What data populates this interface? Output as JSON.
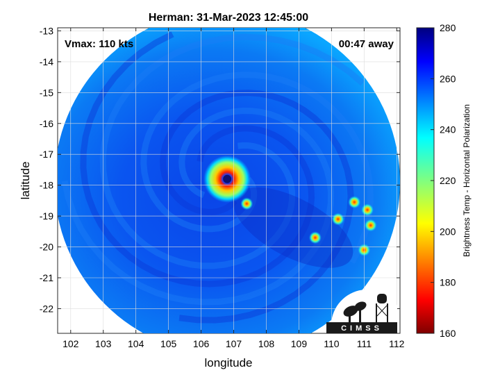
{
  "chart_data": {
    "type": "heatmap",
    "title": "Herman: 31-Mar-2023 12:45:00",
    "xlabel": "longitude",
    "ylabel": "latitude",
    "xlim": [
      101.6,
      112.1
    ],
    "ylim": [
      -22.8,
      -12.9
    ],
    "xticks": [
      102,
      103,
      104,
      105,
      106,
      107,
      108,
      109,
      110,
      111,
      112
    ],
    "yticks": [
      -13,
      -14,
      -15,
      -16,
      -17,
      -18,
      -19,
      -20,
      -21,
      -22
    ],
    "grid": true,
    "annotations": {
      "left": "Vmax: 110 kts",
      "right": "00:47 away"
    },
    "swath": {
      "center_lon": 106.8,
      "center_lat": -17.9,
      "radius_deg_lon": 5.3
    },
    "storm_eye": {
      "lon": 106.8,
      "lat": -17.8
    },
    "convective_cells": [
      {
        "lon": 110.2,
        "lat": -19.1
      },
      {
        "lon": 110.7,
        "lat": -18.55
      },
      {
        "lon": 111.1,
        "lat": -18.8
      },
      {
        "lon": 111.0,
        "lat": -20.1
      },
      {
        "lon": 111.2,
        "lat": -19.3
      },
      {
        "lon": 107.4,
        "lat": -18.6
      },
      {
        "lon": 109.5,
        "lat": -19.7
      }
    ],
    "colorbar": {
      "label": "Brightness Temp - Horizontal Polarization",
      "min": 160,
      "max": 280,
      "ticks": [
        160,
        180,
        200,
        220,
        240,
        260,
        280
      ],
      "colormap": "jet"
    }
  },
  "logo": {
    "text": "CIMSS"
  }
}
